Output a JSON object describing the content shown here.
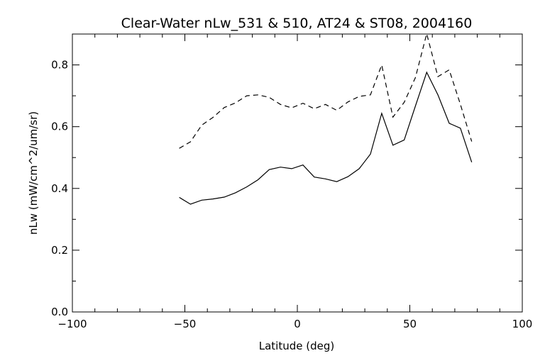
{
  "chart_data": {
    "type": "line",
    "title": "Clear-Water nLw_531 & 510, AT24 & ST08, 2004160",
    "xlabel": "Latitude (deg)",
    "ylabel": "nLw (mW/cm^2/um/sr)",
    "xlim": [
      -100,
      100
    ],
    "ylim": [
      0,
      0.9
    ],
    "xticks": [
      -100,
      -50,
      0,
      50,
      100
    ],
    "xtick_labels": [
      "−100",
      "−50",
      "0",
      "50",
      "100"
    ],
    "yticks": [
      0.0,
      0.2,
      0.4,
      0.6,
      0.8
    ],
    "ytick_labels": [
      "0.0",
      "0.2",
      "0.4",
      "0.6",
      "0.8"
    ],
    "grid": false,
    "series": [
      {
        "style": "solid",
        "color": "#000000",
        "x": [
          -52.5,
          -47.5,
          -42.5,
          -37.5,
          -32.5,
          -27.5,
          -22.5,
          -17.5,
          -12.5,
          -7.5,
          -2.5,
          2.5,
          7.5,
          12.5,
          17.5,
          22.5,
          27.5,
          32.5,
          37.5,
          42.5,
          47.5,
          52.5,
          57.5,
          62.5,
          67.5,
          72.5,
          77.5
        ],
        "values": [
          0.371,
          0.349,
          0.362,
          0.366,
          0.372,
          0.386,
          0.405,
          0.428,
          0.461,
          0.469,
          0.464,
          0.476,
          0.437,
          0.431,
          0.422,
          0.438,
          0.464,
          0.511,
          0.643,
          0.54,
          0.557,
          0.667,
          0.776,
          0.703,
          0.611,
          0.595,
          0.485
        ]
      },
      {
        "style": "dashed",
        "color": "#000000",
        "x": [
          -52.5,
          -47.5,
          -42.5,
          -37.5,
          -32.5,
          -27.5,
          -22.5,
          -17.5,
          -12.5,
          -7.5,
          -2.5,
          2.5,
          7.5,
          12.5,
          17.5,
          22.5,
          27.5,
          32.5,
          37.5,
          42.5,
          47.5,
          52.5,
          57.5,
          62.5,
          67.5,
          72.5,
          77.5
        ],
        "values": [
          0.53,
          0.551,
          0.605,
          0.63,
          0.662,
          0.677,
          0.7,
          0.703,
          0.695,
          0.672,
          0.661,
          0.676,
          0.658,
          0.672,
          0.653,
          0.68,
          0.698,
          0.703,
          0.8,
          0.631,
          0.679,
          0.759,
          0.901,
          0.762,
          0.784,
          0.672,
          0.552
        ]
      }
    ]
  }
}
